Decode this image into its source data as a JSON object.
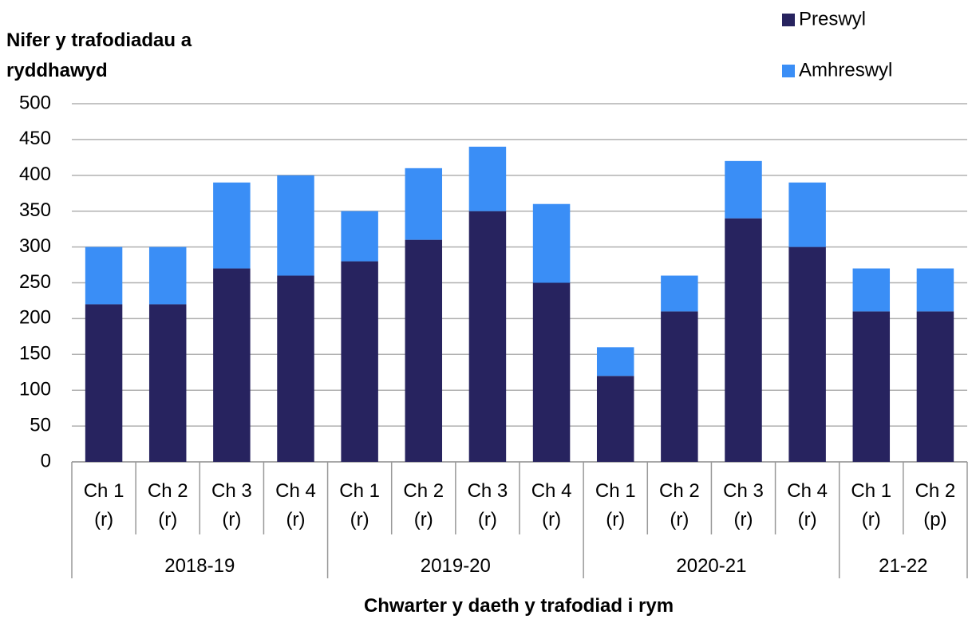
{
  "chart_data": {
    "type": "stacked_bar",
    "y_axis_label": "Nifer y trafodiadau a ryddhawyd",
    "x_axis_label": "Chwarter y daeth y trafodiad i rym",
    "groups": [
      {
        "name": "2018-19",
        "categories": [
          "Ch 1 (r)",
          "Ch 2 (r)",
          "Ch 3 (r)",
          "Ch 4 (r)"
        ]
      },
      {
        "name": "2019-20",
        "categories": [
          "Ch 1 (r)",
          "Ch 2 (r)",
          "Ch 3 (r)",
          "Ch 4 (r)"
        ]
      },
      {
        "name": "2020-21",
        "categories": [
          "Ch 1 (r)",
          "Ch 2 (r)",
          "Ch 3 (r)",
          "Ch 4 (r)"
        ]
      },
      {
        "name": "21-22",
        "categories": [
          "Ch 1 (r)",
          "Ch 2 (p)"
        ]
      }
    ],
    "series": [
      {
        "name": "Preswyl",
        "color": "#27235f",
        "values": [
          220,
          220,
          270,
          260,
          280,
          310,
          350,
          250,
          120,
          210,
          340,
          300,
          210,
          210
        ]
      },
      {
        "name": "Amhreswyl",
        "color": "#3a8ef6",
        "values": [
          80,
          80,
          120,
          140,
          70,
          100,
          90,
          110,
          40,
          50,
          80,
          90,
          60,
          60
        ]
      }
    ],
    "ylim": [
      0,
      500
    ],
    "yticks": [
      0,
      50,
      100,
      150,
      200,
      250,
      300,
      350,
      400,
      450,
      500
    ],
    "grid": true
  }
}
